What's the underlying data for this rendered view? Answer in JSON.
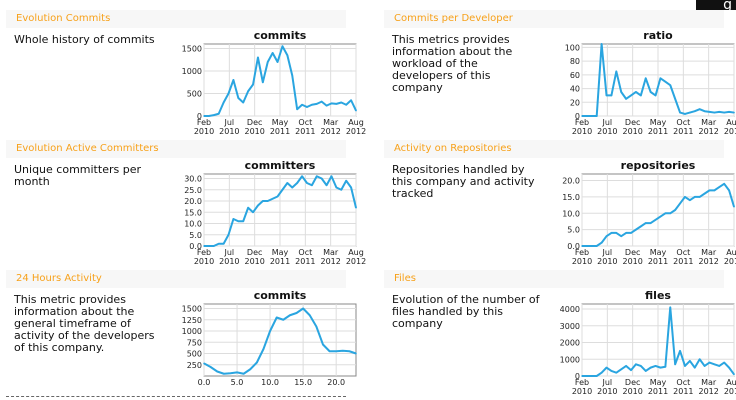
{
  "corner_logo_text": "g",
  "panels": [
    {
      "title": "Evolution Commits",
      "description": "Whole history of commits",
      "chart_data": {
        "type": "line",
        "title": "commits",
        "xlabel": "",
        "ylabel": "",
        "x": [
          0,
          1,
          2,
          3,
          4,
          5,
          6,
          7,
          8,
          9,
          10,
          11,
          12,
          13,
          14,
          15,
          16,
          17,
          18,
          19,
          20,
          21,
          22,
          23,
          24,
          25,
          26,
          27,
          28,
          29,
          30,
          31
        ],
        "series": [
          {
            "values": [
              0,
              0,
              20,
              50,
              300,
              500,
              800,
              400,
              300,
              550,
              700,
              1300,
              750,
              1200,
              1400,
              1200,
              1550,
              1350,
              900,
              150,
              250,
              200,
              250,
              270,
              320,
              230,
              280,
              270,
              300,
              250,
              350,
              120
            ]
          }
        ],
        "xtick_labels": [
          "Feb\n2010",
          "Jul\n2010",
          "Dec\n2010",
          "May\n2011",
          "Oct\n2011",
          "Mar\n2012",
          "Aug\n2012"
        ],
        "ytick_labels": [
          "0",
          "500",
          "1000",
          "1500"
        ],
        "ylim": [
          0,
          1600
        ],
        "grid": true
      }
    },
    {
      "title": "Commits per Developer",
      "description": "This metrics provides information about the workload of the developers of this company",
      "chart_data": {
        "type": "line",
        "title": "ratio",
        "xlabel": "",
        "ylabel": "",
        "x": [
          0,
          1,
          2,
          3,
          4,
          5,
          6,
          7,
          8,
          9,
          10,
          11,
          12,
          13,
          14,
          15,
          16,
          17,
          18,
          19,
          20,
          21,
          22,
          23,
          24,
          25,
          26,
          27,
          28,
          29,
          30,
          31
        ],
        "series": [
          {
            "values": [
              0,
              0,
              0,
              0,
              105,
              30,
              30,
              65,
              35,
              25,
              30,
              35,
              30,
              55,
              35,
              30,
              55,
              50,
              45,
              25,
              5,
              3,
              5,
              7,
              10,
              7,
              6,
              5,
              6,
              5,
              6,
              5
            ]
          }
        ],
        "xtick_labels": [
          "Feb\n2010",
          "Jul\n2010",
          "Dec\n2010",
          "May\n2011",
          "Oct\n2011",
          "Mar\n2012",
          "Aug\n2012"
        ],
        "ytick_labels": [
          "0",
          "20",
          "40",
          "60",
          "80",
          "100"
        ],
        "ylim": [
          0,
          105
        ],
        "grid": true
      }
    },
    {
      "title": "Evolution Active Committers",
      "description": "Unique committers per month",
      "chart_data": {
        "type": "line",
        "title": "committers",
        "xlabel": "",
        "ylabel": "",
        "x": [
          0,
          1,
          2,
          3,
          4,
          5,
          6,
          7,
          8,
          9,
          10,
          11,
          12,
          13,
          14,
          15,
          16,
          17,
          18,
          19,
          20,
          21,
          22,
          23,
          24,
          25,
          26,
          27,
          28,
          29,
          30,
          31
        ],
        "series": [
          {
            "values": [
              0,
              0,
              0,
              1,
              1,
              5,
              12,
              11,
              11,
              17,
              15,
              18,
              20,
              20,
              21,
              22,
              25,
              28,
              26,
              28,
              31,
              28,
              27,
              31,
              30,
              27,
              31,
              26,
              25,
              29,
              26,
              17
            ]
          }
        ],
        "xtick_labels": [
          "Feb\n2010",
          "Jul\n2010",
          "Dec\n2010",
          "May\n2011",
          "Oct\n2011",
          "Mar\n2012",
          "Aug\n2012"
        ],
        "ytick_labels": [
          "0.0",
          "5.0",
          "10.0",
          "15.0",
          "20.0",
          "25.0",
          "30.0"
        ],
        "ylim": [
          0,
          32
        ],
        "grid": true
      }
    },
    {
      "title": "Activity on Repositories",
      "description": "Repositories handled by this company and activity tracked",
      "chart_data": {
        "type": "line",
        "title": "repositories",
        "xlabel": "",
        "ylabel": "",
        "x": [
          0,
          1,
          2,
          3,
          4,
          5,
          6,
          7,
          8,
          9,
          10,
          11,
          12,
          13,
          14,
          15,
          16,
          17,
          18,
          19,
          20,
          21,
          22,
          23,
          24,
          25,
          26,
          27,
          28,
          29,
          30,
          31
        ],
        "series": [
          {
            "values": [
              0,
              0,
              0,
              0,
              1,
              3,
              4,
              4,
              3,
              4,
              4,
              5,
              6,
              7,
              7,
              8,
              9,
              10,
              10,
              11,
              13,
              15,
              14,
              15,
              15,
              16,
              17,
              17,
              18,
              19,
              17,
              12
            ]
          }
        ],
        "xtick_labels": [
          "Feb\n2010",
          "Jul\n2010",
          "Dec\n2010",
          "May\n2011",
          "Oct\n2011",
          "Mar\n2012",
          "Aug\n2012"
        ],
        "ytick_labels": [
          "0.0",
          "5.0",
          "10.0",
          "15.0",
          "20.0"
        ],
        "ylim": [
          0,
          22
        ],
        "grid": true
      }
    },
    {
      "title": "24 Hours Activity",
      "description": "This metric provides information about the general timeframe of activity of the developers of this company.",
      "chart_data": {
        "type": "line",
        "title": "commits",
        "xlabel": "",
        "ylabel": "",
        "x": [
          0,
          1,
          2,
          3,
          4,
          5,
          6,
          7,
          8,
          9,
          10,
          11,
          12,
          13,
          14,
          15,
          16,
          17,
          18,
          19,
          20,
          21,
          22,
          23
        ],
        "series": [
          {
            "values": [
              280,
              200,
              100,
              50,
              60,
              80,
              50,
              150,
              300,
              600,
              1000,
              1300,
              1250,
              1350,
              1400,
              1500,
              1350,
              1100,
              700,
              550,
              550,
              560,
              550,
              500
            ]
          }
        ],
        "xtick_labels": [
          "0.0",
          "5.0",
          "10.0",
          "15.0",
          "20.0"
        ],
        "ytick_labels": [
          "250",
          "500",
          "750",
          "1000",
          "1250",
          "1500"
        ],
        "ylim": [
          0,
          1600
        ],
        "grid": true
      }
    },
    {
      "title": "Files",
      "description": "Evolution of the number of files handled by this company",
      "chart_data": {
        "type": "line",
        "title": "files",
        "xlabel": "",
        "ylabel": "",
        "x": [
          0,
          1,
          2,
          3,
          4,
          5,
          6,
          7,
          8,
          9,
          10,
          11,
          12,
          13,
          14,
          15,
          16,
          17,
          18,
          19,
          20,
          21,
          22,
          23,
          24,
          25,
          26,
          27,
          28,
          29,
          30,
          31
        ],
        "series": [
          {
            "values": [
              0,
              0,
              0,
              0,
              200,
              500,
              300,
              200,
              400,
              600,
              350,
              700,
              600,
              300,
              500,
              600,
              500,
              550,
              4100,
              700,
              1500,
              600,
              900,
              500,
              1000,
              600,
              800,
              700,
              600,
              800,
              500,
              100
            ]
          }
        ],
        "xtick_labels": [
          "Feb\n2010",
          "Jul\n2010",
          "Dec\n2010",
          "May\n2011",
          "Oct\n2011",
          "Mar\n2012",
          "Aug\n2012"
        ],
        "ytick_labels": [
          "0",
          "1000",
          "2000",
          "3000",
          "4000"
        ],
        "ylim": [
          0,
          4300
        ],
        "grid": true
      }
    }
  ]
}
